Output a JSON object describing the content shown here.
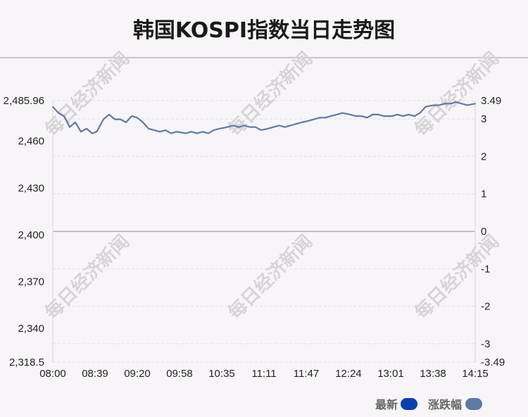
{
  "page": {
    "title": "韩国KOSPI指数当日走势图"
  },
  "watermark": {
    "text": "每日经济新闻"
  },
  "legend": [
    {
      "label": "最新",
      "color": "#0d3fae"
    },
    {
      "label": "涨跌幅",
      "color": "#5e7aa6"
    }
  ],
  "chart_data": {
    "type": "line",
    "title": "韩国KOSPI指数当日走势图",
    "xlabel": "",
    "ylabel": "",
    "x_ticks": [
      "08:00",
      "08:39",
      "09:20",
      "09:58",
      "10:35",
      "11:11",
      "11:47",
      "12:24",
      "13:01",
      "13:38",
      "14:15"
    ],
    "y_ticks": [
      "2,485.96",
      "2,460",
      "2,430",
      "2,400",
      "2,370",
      "2,340",
      "2,318.5"
    ],
    "y_tick_values": [
      2485.96,
      2460,
      2430,
      2400,
      2370,
      2340,
      2318.5
    ],
    "y2_ticks": [
      "3.49",
      "3",
      "2",
      "1",
      "0",
      "-1",
      "-2",
      "-3",
      "-3.49"
    ],
    "y2_tick_values": [
      3.49,
      3,
      2,
      1,
      0,
      -1,
      -2,
      -3,
      -3.49
    ],
    "ylim": [
      2318.5,
      2485.96
    ],
    "y2lim": [
      -3.49,
      3.49
    ],
    "baseline": 2402.2,
    "grid": true,
    "legend_position": "bottom-right",
    "line_color": "#5e7aa6",
    "series": [
      {
        "x": [
          "08:00",
          "08:05",
          "08:10",
          "08:15",
          "08:20",
          "08:25",
          "08:30",
          "08:35",
          "08:39",
          "08:45",
          "08:50",
          "08:55",
          "09:00",
          "09:05",
          "09:10",
          "09:15",
          "09:20",
          "09:25",
          "09:30",
          "09:35",
          "09:40",
          "09:45",
          "09:50",
          "09:58",
          "10:03",
          "10:08",
          "10:13",
          "10:18",
          "10:23",
          "10:28",
          "10:35",
          "10:40",
          "10:45",
          "10:50",
          "10:55",
          "11:00",
          "11:05",
          "11:11",
          "11:16",
          "11:21",
          "11:26",
          "11:31",
          "11:36",
          "11:41",
          "11:47",
          "11:52",
          "11:57",
          "12:02",
          "12:07",
          "12:12",
          "12:17",
          "12:24",
          "12:29",
          "12:34",
          "12:39",
          "12:44",
          "12:49",
          "12:54",
          "13:01",
          "13:06",
          "13:11",
          "13:16",
          "13:21",
          "13:26",
          "13:31",
          "13:38",
          "13:43",
          "13:48",
          "13:53",
          "13:58",
          "14:03",
          "14:08",
          "14:15"
        ],
        "values": [
          2482,
          2478,
          2476,
          2469,
          2472,
          2466,
          2468,
          2465,
          2466,
          2474,
          2477,
          2474,
          2474,
          2472,
          2476,
          2475,
          2472,
          2468,
          2467,
          2466,
          2467,
          2465,
          2466,
          2465,
          2466,
          2465,
          2466,
          2465,
          2467,
          2468,
          2469,
          2470,
          2469,
          2470,
          2469,
          2469,
          2467,
          2468,
          2469,
          2470,
          2469,
          2470,
          2471,
          2472,
          2473,
          2474,
          2475,
          2475,
          2476,
          2477,
          2478,
          2477,
          2476,
          2476,
          2475,
          2477,
          2477,
          2476,
          2476,
          2477,
          2476,
          2477,
          2476,
          2478,
          2482,
          2483,
          2483,
          2484,
          2484,
          2485,
          2484,
          2483,
          2484
        ]
      }
    ]
  }
}
